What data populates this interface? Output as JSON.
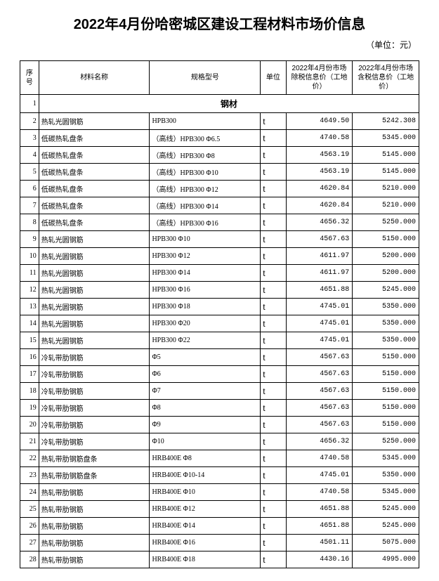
{
  "title": "2022年4月份哈密城区建设工程材料市场价信息",
  "unit_label": "（单位：元）",
  "columns": {
    "seq": "序号",
    "name": "材料名称",
    "spec": "规格型号",
    "unit": "单位",
    "price_ex": "2022年4月份市场除税信息价（工地价）",
    "price_in": "2022年4月份市场含税信息价（工地价）"
  },
  "section": {
    "seq": "1",
    "label": "钢材"
  },
  "rows": [
    {
      "seq": "2",
      "name": "热轧光圆钢筋",
      "spec": "HPB300",
      "unit": "t",
      "p1": "4649.50",
      "p2": "5242.308"
    },
    {
      "seq": "3",
      "name": "低碳热轧盘条",
      "spec": "（高线）HPB300 Φ6.5",
      "unit": "t",
      "p1": "4740.58",
      "p2": "5345.000"
    },
    {
      "seq": "4",
      "name": "低碳热轧盘条",
      "spec": "（高线）HPB300 Φ8",
      "unit": "t",
      "p1": "4563.19",
      "p2": "5145.000"
    },
    {
      "seq": "5",
      "name": "低碳热轧盘条",
      "spec": "（高线）HPB300 Φ10",
      "unit": "t",
      "p1": "4563.19",
      "p2": "5145.000"
    },
    {
      "seq": "6",
      "name": "低碳热轧盘条",
      "spec": "（高线）HPB300 Φ12",
      "unit": "t",
      "p1": "4620.84",
      "p2": "5210.000"
    },
    {
      "seq": "7",
      "name": "低碳热轧盘条",
      "spec": "（高线）HPB300 Φ14",
      "unit": "t",
      "p1": "4620.84",
      "p2": "5210.000"
    },
    {
      "seq": "8",
      "name": "低碳热轧盘条",
      "spec": "（高线）HPB300 Φ16",
      "unit": "t",
      "p1": "4656.32",
      "p2": "5250.000"
    },
    {
      "seq": "9",
      "name": "热轧光圆钢筋",
      "spec": "HPB300 Φ10",
      "unit": "t",
      "p1": "4567.63",
      "p2": "5150.000"
    },
    {
      "seq": "10",
      "name": "热轧光圆钢筋",
      "spec": "HPB300 Φ12",
      "unit": "t",
      "p1": "4611.97",
      "p2": "5200.000"
    },
    {
      "seq": "11",
      "name": "热轧光圆钢筋",
      "spec": "HPB300 Φ14",
      "unit": "t",
      "p1": "4611.97",
      "p2": "5200.000"
    },
    {
      "seq": "12",
      "name": "热轧光圆钢筋",
      "spec": "HPB300 Φ16",
      "unit": "t",
      "p1": "4651.88",
      "p2": "5245.000"
    },
    {
      "seq": "13",
      "name": "热轧光圆钢筋",
      "spec": "HPB300 Φ18",
      "unit": "t",
      "p1": "4745.01",
      "p2": "5350.000"
    },
    {
      "seq": "14",
      "name": "热轧光圆钢筋",
      "spec": "HPB300 Φ20",
      "unit": "t",
      "p1": "4745.01",
      "p2": "5350.000"
    },
    {
      "seq": "15",
      "name": "热轧光圆钢筋",
      "spec": "HPB300 Φ22",
      "unit": "t",
      "p1": "4745.01",
      "p2": "5350.000"
    },
    {
      "seq": "16",
      "name": "冷轧带肋钢筋",
      "spec": "Φ5",
      "unit": "t",
      "p1": "4567.63",
      "p2": "5150.000"
    },
    {
      "seq": "17",
      "name": "冷轧带肋钢筋",
      "spec": "Φ6",
      "unit": "t",
      "p1": "4567.63",
      "p2": "5150.000"
    },
    {
      "seq": "18",
      "name": "冷轧带肋钢筋",
      "spec": "Φ7",
      "unit": "t",
      "p1": "4567.63",
      "p2": "5150.000"
    },
    {
      "seq": "19",
      "name": "冷轧带肋钢筋",
      "spec": "Φ8",
      "unit": "t",
      "p1": "4567.63",
      "p2": "5150.000"
    },
    {
      "seq": "20",
      "name": "冷轧带肋钢筋",
      "spec": "Φ9",
      "unit": "t",
      "p1": "4567.63",
      "p2": "5150.000"
    },
    {
      "seq": "21",
      "name": "冷轧带肋钢筋",
      "spec": "Φ10",
      "unit": "t",
      "p1": "4656.32",
      "p2": "5250.000"
    },
    {
      "seq": "22",
      "name": "热轧带肋钢筋盘条",
      "spec": "HRB400E Φ8",
      "unit": "t",
      "p1": "4740.58",
      "p2": "5345.000"
    },
    {
      "seq": "23",
      "name": "热轧带肋钢筋盘条",
      "spec": "HRB400E Φ10-14",
      "unit": "t",
      "p1": "4745.01",
      "p2": "5350.000"
    },
    {
      "seq": "24",
      "name": "热轧带肋钢筋",
      "spec": "HRB400E Φ10",
      "unit": "t",
      "p1": "4740.58",
      "p2": "5345.000"
    },
    {
      "seq": "25",
      "name": "热轧带肋钢筋",
      "spec": "HRB400E Φ12",
      "unit": "t",
      "p1": "4651.88",
      "p2": "5245.000"
    },
    {
      "seq": "26",
      "name": "热轧带肋钢筋",
      "spec": "HRB400E Φ14",
      "unit": "t",
      "p1": "4651.88",
      "p2": "5245.000"
    },
    {
      "seq": "27",
      "name": "热轧带肋钢筋",
      "spec": "HRB400E Φ16",
      "unit": "t",
      "p1": "4501.11",
      "p2": "5075.000"
    },
    {
      "seq": "28",
      "name": "热轧带肋钢筋",
      "spec": "HRB400E Φ18",
      "unit": "t",
      "p1": "4430.16",
      "p2": "4995.000"
    }
  ]
}
